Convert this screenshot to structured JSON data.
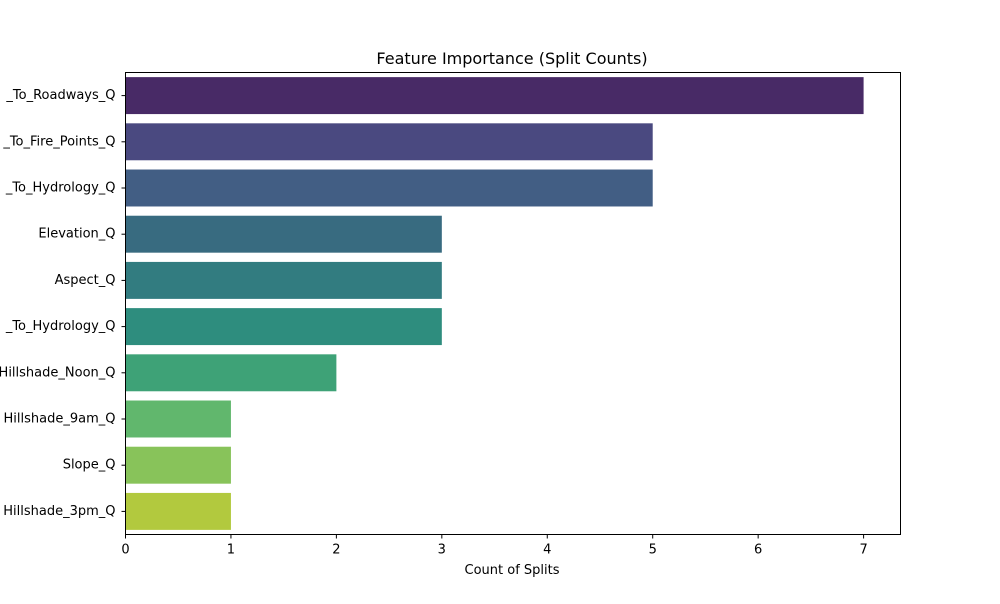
{
  "chart_data": {
    "type": "bar",
    "orientation": "horizontal",
    "title": "Feature Importance (Split Counts)",
    "xlabel": "Count of Splits",
    "ylabel": "",
    "xlim": [
      0,
      7.35
    ],
    "xticks": [
      0,
      1,
      2,
      3,
      4,
      5,
      6,
      7
    ],
    "grid": false,
    "categories": [
      "_To_Roadways_Q",
      "_To_Fire_Points_Q",
      "_To_Hydrology_Q",
      "Elevation_Q",
      "Aspect_Q",
      "_To_Hydrology_Q",
      "Hillshade_Noon_Q",
      "Hillshade_9am_Q",
      "Slope_Q",
      "Hillshade_3pm_Q"
    ],
    "values": [
      7,
      5,
      5,
      3,
      3,
      3,
      2,
      1,
      1,
      1
    ],
    "colors": [
      "#482a66",
      "#4a4980",
      "#425e84",
      "#386b80",
      "#327c80",
      "#2e8d7e",
      "#3ea277",
      "#61b76d",
      "#88c35a",
      "#b2c93e"
    ]
  }
}
